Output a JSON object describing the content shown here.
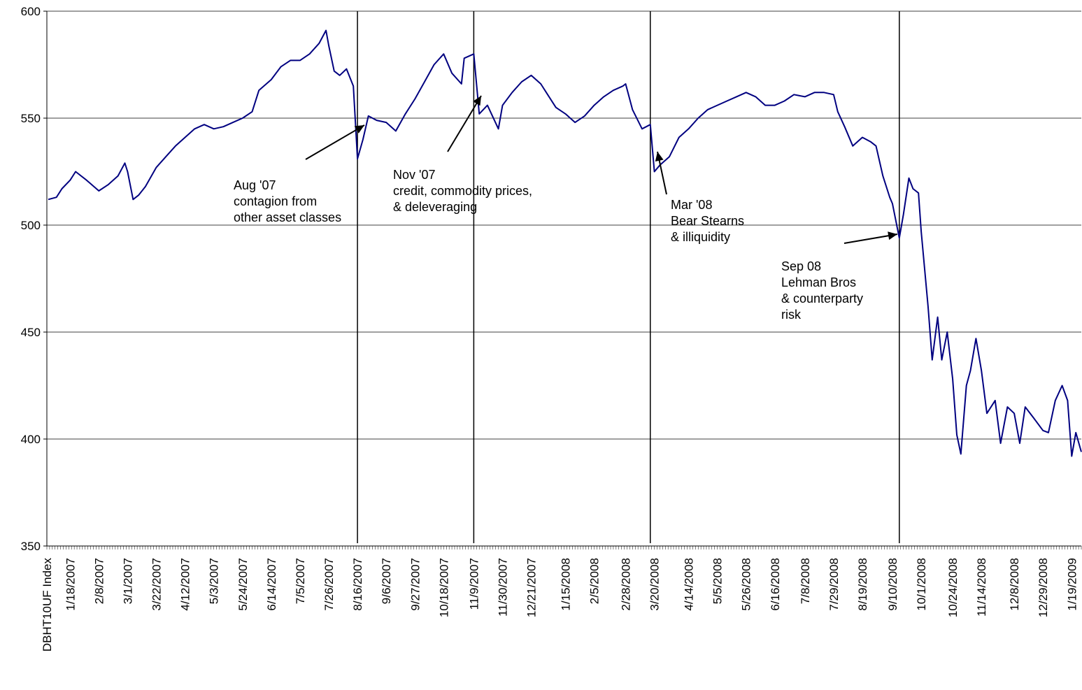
{
  "chart_data": {
    "type": "line",
    "title": "",
    "xlabel": "DBHT10UF Index",
    "ylabel": "",
    "ylim": [
      350,
      600
    ],
    "yticks": [
      350,
      400,
      450,
      500,
      550,
      600
    ],
    "grid": "horizontal",
    "legend": "none",
    "x_range": [
      "1/1/2007",
      "1/26/2009"
    ],
    "x_tick_labels": [
      "1/18/2007",
      "2/8/2007",
      "3/1/2007",
      "3/22/2007",
      "4/12/2007",
      "5/3/2007",
      "5/24/2007",
      "6/14/2007",
      "7/5/2007",
      "7/26/2007",
      "8/16/2007",
      "9/6/2007",
      "9/27/2007",
      "10/18/2007",
      "11/9/2007",
      "11/30/2007",
      "12/21/2007",
      "1/15/2008",
      "2/5/2008",
      "2/28/2008",
      "3/20/2008",
      "4/14/2008",
      "5/5/2008",
      "5/26/2008",
      "6/16/2008",
      "7/8/2008",
      "7/29/2008",
      "8/19/2008",
      "9/10/2008",
      "10/1/2008",
      "10/24/2008",
      "11/14/2008",
      "12/8/2008",
      "12/29/2008",
      "1/19/2009"
    ],
    "series": [
      {
        "color": "#000080",
        "points": [
          [
            "1/2/2007",
            512
          ],
          [
            "1/8/2007",
            513
          ],
          [
            "1/12/2007",
            517
          ],
          [
            "1/18/2007",
            521
          ],
          [
            "1/22/2007",
            525
          ],
          [
            "1/30/2007",
            521
          ],
          [
            "2/8/2007",
            516
          ],
          [
            "2/15/2007",
            519
          ],
          [
            "2/22/2007",
            523
          ],
          [
            "2/27/2007",
            529
          ],
          [
            "3/1/2007",
            525
          ],
          [
            "3/5/2007",
            512
          ],
          [
            "3/9/2007",
            514
          ],
          [
            "3/14/2007",
            518
          ],
          [
            "3/22/2007",
            527
          ],
          [
            "3/29/2007",
            532
          ],
          [
            "4/5/2007",
            537
          ],
          [
            "4/12/2007",
            541
          ],
          [
            "4/19/2007",
            545
          ],
          [
            "4/26/2007",
            547
          ],
          [
            "5/3/2007",
            545
          ],
          [
            "5/10/2007",
            546
          ],
          [
            "5/17/2007",
            548
          ],
          [
            "5/24/2007",
            550
          ],
          [
            "5/31/2007",
            553
          ],
          [
            "6/5/2007",
            563
          ],
          [
            "6/14/2007",
            568
          ],
          [
            "6/21/2007",
            574
          ],
          [
            "6/28/2007",
            577
          ],
          [
            "7/5/2007",
            577
          ],
          [
            "7/12/2007",
            580
          ],
          [
            "7/19/2007",
            585
          ],
          [
            "7/24/2007",
            591
          ],
          [
            "7/26/2007",
            584
          ],
          [
            "7/30/2007",
            572
          ],
          [
            "8/3/2007",
            570
          ],
          [
            "8/8/2007",
            573
          ],
          [
            "8/13/2007",
            565
          ],
          [
            "8/16/2007",
            531
          ],
          [
            "8/20/2007",
            540
          ],
          [
            "8/24/2007",
            551
          ],
          [
            "8/30/2007",
            549
          ],
          [
            "9/6/2007",
            548
          ],
          [
            "9/13/2007",
            544
          ],
          [
            "9/20/2007",
            552
          ],
          [
            "9/27/2007",
            559
          ],
          [
            "10/4/2007",
            567
          ],
          [
            "10/11/2007",
            575
          ],
          [
            "10/18/2007",
            580
          ],
          [
            "10/24/2007",
            571
          ],
          [
            "10/31/2007",
            566
          ],
          [
            "11/2/2007",
            578
          ],
          [
            "11/9/2007",
            580
          ],
          [
            "11/13/2007",
            552
          ],
          [
            "11/19/2007",
            556
          ],
          [
            "11/27/2007",
            545
          ],
          [
            "11/30/2007",
            556
          ],
          [
            "12/7/2007",
            562
          ],
          [
            "12/14/2007",
            567
          ],
          [
            "12/21/2007",
            570
          ],
          [
            "12/28/2007",
            566
          ],
          [
            "1/3/2008",
            560
          ],
          [
            "1/8/2008",
            555
          ],
          [
            "1/15/2008",
            552
          ],
          [
            "1/22/2008",
            548
          ],
          [
            "1/29/2008",
            551
          ],
          [
            "2/5/2008",
            556
          ],
          [
            "2/12/2008",
            560
          ],
          [
            "2/19/2008",
            563
          ],
          [
            "2/26/2008",
            565
          ],
          [
            "2/28/2008",
            566
          ],
          [
            "3/4/2008",
            554
          ],
          [
            "3/11/2008",
            545
          ],
          [
            "3/17/2008",
            547
          ],
          [
            "3/20/2008",
            525
          ],
          [
            "3/24/2008",
            528
          ],
          [
            "3/31/2008",
            532
          ],
          [
            "4/7/2008",
            541
          ],
          [
            "4/14/2008",
            545
          ],
          [
            "4/21/2008",
            550
          ],
          [
            "4/28/2008",
            554
          ],
          [
            "5/5/2008",
            556
          ],
          [
            "5/12/2008",
            558
          ],
          [
            "5/19/2008",
            560
          ],
          [
            "5/26/2008",
            562
          ],
          [
            "6/2/2008",
            560
          ],
          [
            "6/9/2008",
            556
          ],
          [
            "6/16/2008",
            556
          ],
          [
            "6/23/2008",
            558
          ],
          [
            "6/30/2008",
            561
          ],
          [
            "7/8/2008",
            560
          ],
          [
            "7/15/2008",
            562
          ],
          [
            "7/22/2008",
            562
          ],
          [
            "7/29/2008",
            561
          ],
          [
            "8/1/2008",
            553
          ],
          [
            "8/6/2008",
            546
          ],
          [
            "8/12/2008",
            537
          ],
          [
            "8/19/2008",
            541
          ],
          [
            "8/25/2008",
            539
          ],
          [
            "8/29/2008",
            537
          ],
          [
            "9/3/2008",
            523
          ],
          [
            "9/8/2008",
            513
          ],
          [
            "9/10/2008",
            510
          ],
          [
            "9/15/2008",
            494
          ],
          [
            "9/18/2008",
            505
          ],
          [
            "9/22/2008",
            522
          ],
          [
            "9/25/2008",
            517
          ],
          [
            "9/29/2008",
            515
          ],
          [
            "10/1/2008",
            497
          ],
          [
            "10/6/2008",
            462
          ],
          [
            "10/9/2008",
            437
          ],
          [
            "10/13/2008",
            457
          ],
          [
            "10/16/2008",
            437
          ],
          [
            "10/20/2008",
            450
          ],
          [
            "10/24/2008",
            428
          ],
          [
            "10/27/2008",
            402
          ],
          [
            "10/30/2008",
            393
          ],
          [
            "11/3/2008",
            425
          ],
          [
            "11/6/2008",
            432
          ],
          [
            "11/10/2008",
            447
          ],
          [
            "11/14/2008",
            432
          ],
          [
            "11/18/2008",
            412
          ],
          [
            "11/24/2008",
            418
          ],
          [
            "11/28/2008",
            398
          ],
          [
            "12/3/2008",
            415
          ],
          [
            "12/8/2008",
            412
          ],
          [
            "12/12/2008",
            398
          ],
          [
            "12/16/2008",
            415
          ],
          [
            "12/22/2008",
            410
          ],
          [
            "12/29/2008",
            404
          ],
          [
            "1/2/2009",
            403
          ],
          [
            "1/7/2009",
            418
          ],
          [
            "1/12/2009",
            425
          ],
          [
            "1/16/2009",
            418
          ],
          [
            "1/19/2009",
            392
          ],
          [
            "1/22/2009",
            403
          ],
          [
            "1/26/2009",
            394
          ]
        ]
      }
    ],
    "event_lines": [
      "8/16/2007",
      "11/9/2007",
      "3/17/2008",
      "9/15/2008"
    ],
    "annotations": [
      {
        "lines": [
          " Aug '07",
          "contagion from",
          "other asset classes"
        ]
      },
      {
        "lines": [
          " Nov '07",
          "credit, commodity prices,",
          "& deleveraging"
        ]
      },
      {
        "lines": [
          " Mar '08",
          "Bear Stearns",
          "& illiquidity"
        ]
      },
      {
        "lines": [
          " Sep 08",
          "Lehman Bros",
          "& counterparty",
          "risk"
        ]
      }
    ]
  }
}
